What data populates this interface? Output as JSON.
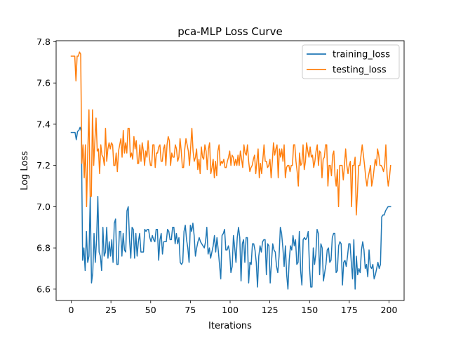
{
  "chart_data": {
    "type": "line",
    "title": "pca-MLP Loss Curve",
    "xlabel": "Iterations",
    "ylabel": "Log Loss",
    "xlim": [
      -9.5,
      209.5
    ],
    "ylim": [
      6.545,
      7.805
    ],
    "xticks": [
      0,
      25,
      50,
      75,
      100,
      125,
      150,
      175,
      200
    ],
    "yticks": [
      6.6,
      6.8,
      7.0,
      7.2,
      7.4,
      7.6,
      7.8
    ],
    "ytick_labels": [
      "6.6",
      "6.8",
      "7.0",
      "7.2",
      "7.4",
      "7.6",
      "7.8"
    ],
    "grid": false,
    "legend_position": "top-right",
    "series": [
      {
        "name": "training_loss",
        "color": "#1f77b4",
        "values": [
          7.36,
          7.36,
          7.36,
          7.36,
          7.325,
          7.365,
          7.37,
          7.385,
          7.365,
          6.74,
          6.8,
          6.69,
          6.88,
          6.73,
          6.76,
          7.05,
          6.63,
          6.68,
          6.87,
          6.73,
          6.84,
          7.05,
          6.78,
          6.76,
          6.69,
          6.9,
          6.76,
          6.78,
          6.9,
          6.75,
          6.83,
          6.76,
          6.84,
          6.73,
          6.92,
          6.94,
          6.72,
          6.72,
          6.88,
          6.88,
          6.76,
          6.87,
          6.79,
          6.78,
          6.98,
          7.0,
          6.84,
          6.75,
          6.9,
          6.89,
          6.75,
          6.87,
          6.76,
          6.83,
          6.87,
          6.78,
          6.78,
          6.78,
          6.89,
          6.88,
          6.89,
          6.89,
          6.85,
          6.83,
          6.86,
          6.84,
          6.83,
          6.89,
          6.89,
          6.74,
          6.84,
          6.87,
          6.77,
          6.83,
          6.83,
          6.83,
          6.89,
          6.88,
          6.84,
          6.84,
          6.9,
          6.9,
          6.82,
          6.87,
          6.82,
          6.85,
          6.73,
          6.72,
          6.73,
          6.88,
          6.91,
          6.84,
          6.8,
          6.73,
          6.91,
          6.88,
          6.92,
          6.86,
          6.76,
          6.8,
          6.83,
          6.85,
          6.83,
          6.82,
          6.81,
          6.8,
          6.83,
          6.9,
          6.77,
          6.8,
          6.75,
          6.78,
          6.81,
          6.86,
          6.78,
          6.85,
          6.79,
          6.72,
          6.65,
          6.86,
          6.87,
          6.89,
          6.79,
          6.79,
          6.81,
          6.78,
          6.68,
          6.71,
          6.86,
          6.8,
          6.73,
          6.85,
          6.9,
          6.85,
          6.64,
          6.82,
          6.84,
          6.73,
          6.85,
          6.85,
          6.63,
          6.73,
          6.72,
          6.82,
          6.82,
          6.79,
          6.73,
          6.61,
          6.76,
          6.81,
          6.78,
          6.83,
          6.84,
          6.84,
          6.67,
          6.82,
          6.81,
          6.63,
          6.73,
          6.82,
          6.79,
          6.78,
          6.71,
          6.68,
          6.76,
          6.9,
          6.87,
          6.8,
          6.71,
          6.81,
          6.67,
          6.6,
          6.74,
          6.81,
          6.79,
          6.86,
          6.81,
          6.84,
          6.72,
          6.73,
          6.88,
          6.69,
          6.62,
          6.84,
          6.85,
          6.84,
          6.85,
          6.88,
          6.71,
          6.61,
          6.61,
          6.8,
          6.72,
          6.77,
          6.89,
          6.87,
          6.67,
          6.82,
          6.8,
          6.64,
          6.68,
          6.72,
          6.79,
          6.8,
          6.73,
          6.74,
          6.85,
          6.87,
          6.87,
          6.68,
          6.69,
          6.81,
          6.83,
          6.82,
          6.62,
          6.73,
          6.74,
          6.71,
          6.76,
          6.82,
          6.82,
          6.73,
          6.65,
          6.84,
          6.6,
          6.76,
          6.67,
          6.7,
          6.68,
          6.79,
          6.83,
          6.79,
          6.7,
          6.72,
          6.66,
          6.79,
          6.71,
          6.7,
          6.72,
          6.65,
          6.67,
          6.7,
          6.73,
          6.7,
          6.72,
          6.95,
          6.96,
          6.96,
          6.98,
          6.99,
          7.0,
          7.0,
          7.0
        ]
      },
      {
        "name": "testing_loss",
        "color": "#ff7f0e",
        "values": [
          7.73,
          7.73,
          7.73,
          7.73,
          7.61,
          7.73,
          7.73,
          7.75,
          7.74,
          7.21,
          7.3,
          7.14,
          7.3,
          7.0,
          7.27,
          7.47,
          7.05,
          7.05,
          7.47,
          7.2,
          7.32,
          7.43,
          7.27,
          7.28,
          7.16,
          7.3,
          7.25,
          7.24,
          7.2,
          7.38,
          7.22,
          7.28,
          7.31,
          7.28,
          7.31,
          7.3,
          7.2,
          7.2,
          7.26,
          7.17,
          7.27,
          7.3,
          7.33,
          7.24,
          7.37,
          7.26,
          7.31,
          7.26,
          7.38,
          7.38,
          7.24,
          7.26,
          7.23,
          7.34,
          7.28,
          7.32,
          7.21,
          7.21,
          7.3,
          7.22,
          7.31,
          7.27,
          7.2,
          7.27,
          7.24,
          7.32,
          7.24,
          7.2,
          7.2,
          7.3,
          7.3,
          7.19,
          7.26,
          7.26,
          7.29,
          7.3,
          7.22,
          7.22,
          7.28,
          7.3,
          7.2,
          7.3,
          7.34,
          7.32,
          7.2,
          7.26,
          7.24,
          7.24,
          7.3,
          7.28,
          7.22,
          7.24,
          7.33,
          7.27,
          7.19,
          7.19,
          7.28,
          7.33,
          7.3,
          7.27,
          7.2,
          7.29,
          7.38,
          7.27,
          7.22,
          7.24,
          7.28,
          7.18,
          7.23,
          7.16,
          7.29,
          7.24,
          7.23,
          7.3,
          7.27,
          7.18,
          7.28,
          7.31,
          7.16,
          7.19,
          7.23,
          7.14,
          7.22,
          7.15,
          7.27,
          7.3,
          7.2,
          7.22,
          7.21,
          7.23,
          7.19,
          7.19,
          7.22,
          7.24,
          7.27,
          7.2,
          7.25,
          7.24,
          7.2,
          7.23,
          7.2,
          7.25,
          7.2,
          7.27,
          7.23,
          7.19,
          7.3,
          7.26,
          7.25,
          7.3,
          7.22,
          7.17,
          7.19,
          7.2,
          7.23,
          7.25,
          7.16,
          7.22,
          7.28,
          7.14,
          7.21,
          7.16,
          7.23,
          7.3,
          7.22,
          7.22,
          7.19,
          7.2,
          7.23,
          7.14,
          7.22,
          7.31,
          7.25,
          7.28,
          7.3,
          7.14,
          7.28,
          7.24,
          7.28,
          7.22,
          7.3,
          7.14,
          7.19,
          7.2,
          7.2,
          7.17,
          7.2,
          7.2,
          7.3,
          7.3,
          7.22,
          7.17,
          7.1,
          7.26,
          7.2,
          7.21,
          7.3,
          7.18,
          7.22,
          7.31,
          7.27,
          7.24,
          7.29,
          7.24,
          7.25,
          7.19,
          7.22,
          7.27,
          7.3,
          7.2,
          7.27,
          7.26,
          7.14,
          7.23,
          7.24,
          7.3,
          7.3,
          7.1,
          7.2,
          7.2,
          7.15,
          7.25,
          7.27,
          7.15,
          7.1,
          7.18,
          7.0,
          7.2,
          7.2,
          7.2,
          7.13,
          7.2,
          7.28,
          7.2,
          7.16,
          7.2,
          7.22,
          7.0,
          7.2,
          7.2,
          7.24,
          6.96,
          7.07,
          7.2,
          7.2,
          7.25,
          7.3,
          7.25,
          7.2,
          7.14,
          7.1,
          7.14,
          7.17,
          7.2,
          7.1,
          7.13,
          7.18,
          7.23,
          7.2,
          7.28,
          7.25,
          7.2,
          7.2,
          7.19,
          7.17,
          7.2,
          7.3,
          7.16,
          7.1,
          7.14,
          7.2
        ]
      }
    ]
  }
}
